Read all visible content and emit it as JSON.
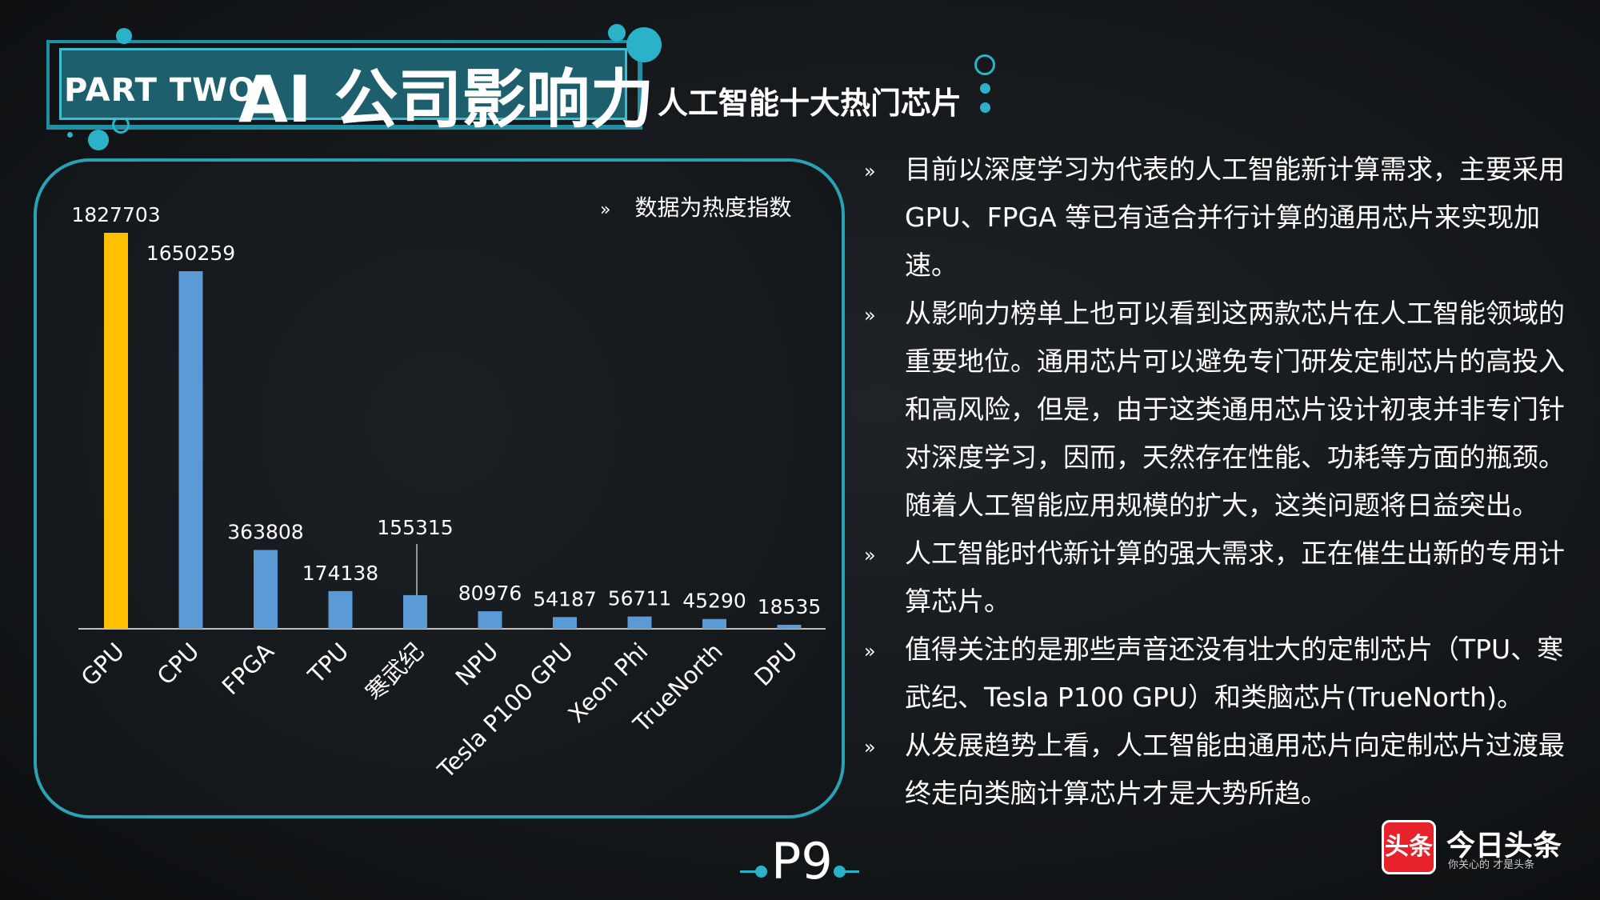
{
  "header": {
    "part_label": "PART TWO",
    "main_title": "AI 公司影响力",
    "subtitle": "人工智能十大热门芯片"
  },
  "chart_note": "数据为热度指数",
  "chart_data": {
    "type": "bar",
    "categories": [
      "GPU",
      "CPU",
      "FPGA",
      "TPU",
      "寒武纪",
      "NPU",
      "Tesla P100 GPU",
      "Xeon Phi",
      "TrueNorth",
      "DPU"
    ],
    "values": [
      1827703,
      1650259,
      363808,
      174138,
      155315,
      80976,
      54187,
      56711,
      45290,
      18535
    ],
    "value_labels": [
      "1827703",
      "1650259",
      "363808",
      "174138",
      "155315",
      "80976",
      "54187",
      "56711",
      "45290",
      "18535"
    ],
    "highlight_index": 0,
    "colors": {
      "highlight": "#ffc000",
      "default": "#5b9bd5",
      "axis": "#bfbfbf"
    },
    "title": "",
    "xlabel": "",
    "ylabel": "",
    "ylim": [
      0,
      1827703
    ],
    "grid": false
  },
  "bullets": [
    "目前以深度学习为代表的人工智能新计算需求，主要采用GPU、FPGA 等已有适合并行计算的通用芯片来实现加速。",
    "从影响力榜单上也可以看到这两款芯片在人工智能领域的重要地位。通用芯片可以避免专门研发定制芯片的高投入和高风险，但是，由于这类通用芯片设计初衷并非专门针对深度学习，因而，天然存在性能、功耗等方面的瓶颈。随着人工智能应用规模的扩大，这类问题将日益突出。",
    "人工智能时代新计算的强大需求，正在催生出新的专用计算芯片。",
    "值得关注的是那些声音还没有壮大的定制芯片（TPU、寒武纪、Tesla P100 GPU）和类脑芯片(TrueNorth)。",
    "从发展趋势上看，人工智能由通用芯片向定制芯片过渡最终走向类脑计算芯片才是大势所趋。"
  ],
  "bullet_marker": "»",
  "page_number": "P9",
  "footer_logo": {
    "mark": "头条",
    "name": "今日头条",
    "tagline": "你关心的 才是头条"
  }
}
